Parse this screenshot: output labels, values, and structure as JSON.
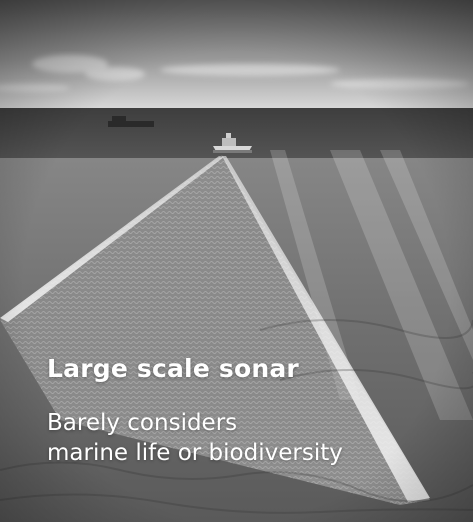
{
  "caption": {
    "title": "Large scale sonar",
    "lines": [
      "Barely considers",
      "marine life or biodiversity"
    ]
  },
  "palette": {
    "text": "#ffffff",
    "sky_top": "#5e5e5e",
    "sky_horizon": "#d8d8d8",
    "sea_far": "#4a4a4a",
    "sea_near": "#6f6f6f",
    "beam": "#e6e6e6"
  }
}
